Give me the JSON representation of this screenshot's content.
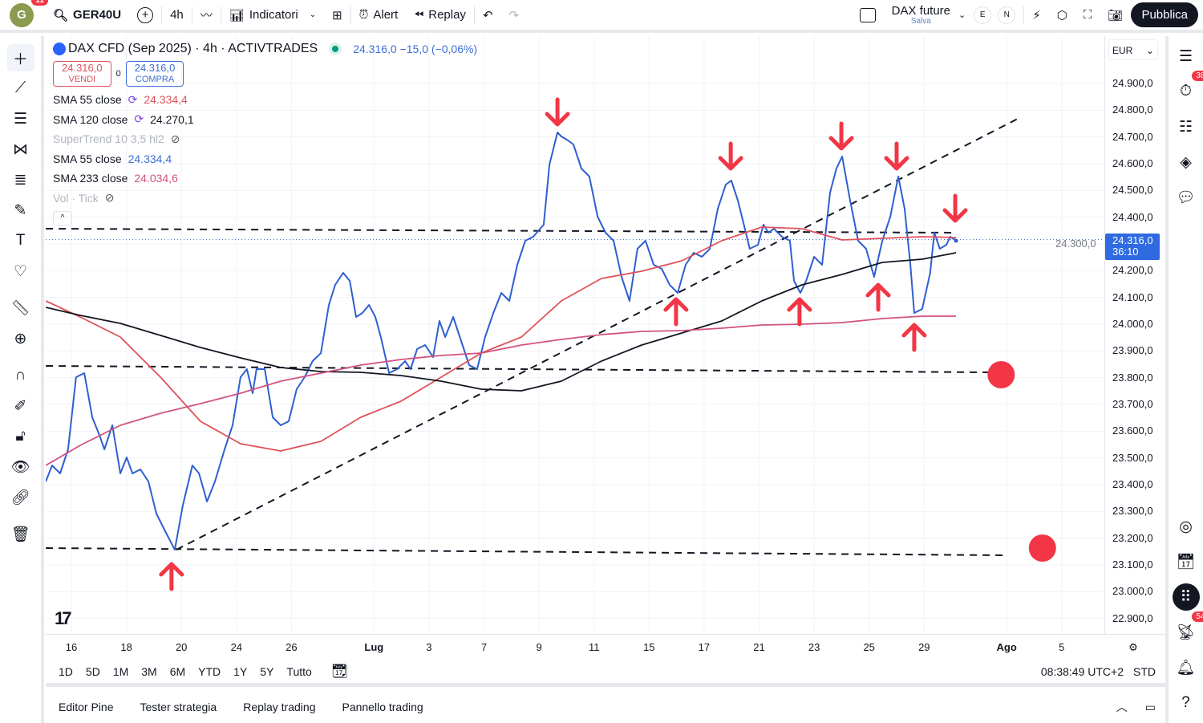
{
  "topbar": {
    "avatar_letter": "G",
    "avatar_badge": "11",
    "symbol": "GER40U",
    "interval": "4h",
    "indicators": "Indicatori",
    "alert": "Alert",
    "replay": "Replay",
    "layout_name": "DAX future",
    "layout_status": "Salva",
    "btn_e": "E",
    "btn_n": "N",
    "publish": "Pubblica"
  },
  "legend": {
    "title": "DAX CFD (Sep 2025) · 4h · ACTIVTRADES",
    "quote": "24.316,0 −15,0 (−0,06%)",
    "sell_price": "24.316,0",
    "sell_label": "VENDI",
    "spread": "0",
    "buy_price": "24.316,0",
    "buy_label": "COMPRA",
    "indicators": [
      {
        "name": "SMA 55 close",
        "value": "24.334,4",
        "color": "#e0525a"
      },
      {
        "name": "SMA 120 close",
        "value": "24.270,1",
        "color": "#131722"
      },
      {
        "name": "SuperTrend 10 3,5 hl2",
        "value": "",
        "color": "#b2b5be"
      },
      {
        "name": "SMA 55 close",
        "value": "24.334,4",
        "color": "#3f6fd6"
      },
      {
        "name": "SMA 233 close",
        "value": "24.034,6",
        "color": "#d2527f"
      },
      {
        "name": "Vol · Tick",
        "value": "",
        "color": "#b2b5be"
      }
    ]
  },
  "currency": "EUR",
  "price_tag": {
    "price": "24.316,0",
    "countdown": "36:10"
  },
  "range": {
    "buttons": [
      "1D",
      "5D",
      "1M",
      "3M",
      "6M",
      "YTD",
      "1Y",
      "5Y",
      "Tutto"
    ],
    "clock": "08:38:49 UTC+2",
    "mode": "STD"
  },
  "bottom_tabs": [
    "Editor Pine",
    "Tester strategia",
    "Replay trading",
    "Pannello trading"
  ],
  "right_badges": {
    "alerts": "38",
    "notifications": "54"
  },
  "colors": {
    "price": "#2f5fd0",
    "sma55": "#e0525a",
    "sma120": "#131722",
    "sma233": "#d2527f",
    "arrow": "#f23645",
    "tag": "#2f6ae0"
  },
  "chart_data": {
    "type": "line",
    "title": "DAX CFD (Sep 2025) · 4h · ACTIVTRADES",
    "x_unit": "trading days since 16 Jun",
    "ylim": [
      22850,
      25050
    ],
    "y_ticks": [
      24900,
      24800,
      24700,
      24600,
      24500,
      24400,
      24300,
      24200,
      24100,
      24000,
      23900,
      23800,
      23700,
      23600,
      23500,
      23400,
      23300,
      23200,
      23100,
      23000,
      22900
    ],
    "y_tick_labels": [
      "24.900,0",
      "24.800,0",
      "24.700,0",
      "24.600,0",
      "24.500,0",
      "24.400,0",
      "24.300,0",
      "24.200,0",
      "24.100,0",
      "24.000,0",
      "23.900,0",
      "23.800,0",
      "23.700,0",
      "23.600,0",
      "23.500,0",
      "23.400,0",
      "23.300,0",
      "23.200,0",
      "23.100,0",
      "23.000,0",
      "22.900,0"
    ],
    "x_ticks": [
      {
        "t": 0,
        "label": "16"
      },
      {
        "t": 2,
        "label": "18"
      },
      {
        "t": 4,
        "label": "20"
      },
      {
        "t": 6,
        "label": "24"
      },
      {
        "t": 8,
        "label": "26"
      },
      {
        "t": 11,
        "label": "Lug"
      },
      {
        "t": 13,
        "label": "3"
      },
      {
        "t": 15,
        "label": "7"
      },
      {
        "t": 17,
        "label": "9"
      },
      {
        "t": 19,
        "label": "11"
      },
      {
        "t": 21,
        "label": "15"
      },
      {
        "t": 23,
        "label": "17"
      },
      {
        "t": 25,
        "label": "21"
      },
      {
        "t": 27,
        "label": "23"
      },
      {
        "t": 29,
        "label": "25"
      },
      {
        "t": 31,
        "label": "29"
      },
      {
        "t": 34,
        "label": "Ago"
      },
      {
        "t": 36,
        "label": "5"
      }
    ],
    "series": [
      {
        "name": "Price",
        "color": "#2f5fd0",
        "points": [
          [
            -0.93,
            23412
          ],
          [
            -0.7,
            23472
          ],
          [
            -0.41,
            23442
          ],
          [
            -0.12,
            23532
          ],
          [
            0.17,
            23802
          ],
          [
            0.47,
            23817
          ],
          [
            0.76,
            23652
          ],
          [
            1.05,
            23577
          ],
          [
            1.2,
            23532
          ],
          [
            1.49,
            23622
          ],
          [
            1.78,
            23442
          ],
          [
            2.01,
            23502
          ],
          [
            2.22,
            23442
          ],
          [
            2.51,
            23457
          ],
          [
            2.8,
            23412
          ],
          [
            3.09,
            23292
          ],
          [
            3.38,
            23232
          ],
          [
            3.76,
            23157
          ],
          [
            4.05,
            23322
          ],
          [
            4.4,
            23472
          ],
          [
            4.64,
            23442
          ],
          [
            4.93,
            23337
          ],
          [
            5.22,
            23412
          ],
          [
            5.57,
            23532
          ],
          [
            5.86,
            23622
          ],
          [
            6.15,
            23802
          ],
          [
            6.38,
            23832
          ],
          [
            6.59,
            23742
          ],
          [
            6.73,
            23832
          ],
          [
            7.03,
            23832
          ],
          [
            7.32,
            23652
          ],
          [
            7.61,
            23622
          ],
          [
            7.9,
            23637
          ],
          [
            8.19,
            23757
          ],
          [
            8.48,
            23802
          ],
          [
            8.77,
            23862
          ],
          [
            9.07,
            23892
          ],
          [
            9.36,
            24072
          ],
          [
            9.59,
            24147
          ],
          [
            9.88,
            24192
          ],
          [
            10.12,
            24162
          ],
          [
            10.35,
            24027
          ],
          [
            10.58,
            24042
          ],
          [
            10.82,
            24072
          ],
          [
            11.05,
            24027
          ],
          [
            11.25,
            23952
          ],
          [
            11.55,
            23817
          ],
          [
            11.84,
            23832
          ],
          [
            12.13,
            23862
          ],
          [
            12.33,
            23832
          ],
          [
            12.57,
            23907
          ],
          [
            12.86,
            23922
          ],
          [
            13.15,
            23877
          ],
          [
            13.38,
            24012
          ],
          [
            13.59,
            23952
          ],
          [
            13.88,
            24027
          ],
          [
            14.17,
            23937
          ],
          [
            14.46,
            23847
          ],
          [
            14.75,
            23832
          ],
          [
            15.04,
            23952
          ],
          [
            15.34,
            24042
          ],
          [
            15.63,
            24117
          ],
          [
            15.92,
            24087
          ],
          [
            16.21,
            24222
          ],
          [
            16.5,
            24312
          ],
          [
            16.79,
            24327
          ],
          [
            17.17,
            24372
          ],
          [
            17.38,
            24597
          ],
          [
            17.67,
            24717
          ],
          [
            17.81,
            24702
          ],
          [
            18.05,
            24687
          ],
          [
            18.25,
            24672
          ],
          [
            18.54,
            24582
          ],
          [
            18.83,
            24552
          ],
          [
            19.13,
            24402
          ],
          [
            19.42,
            24342
          ],
          [
            19.71,
            24312
          ],
          [
            20.0,
            24177
          ],
          [
            20.29,
            24087
          ],
          [
            20.58,
            24282
          ],
          [
            20.87,
            24312
          ],
          [
            21.17,
            24222
          ],
          [
            21.46,
            24207
          ],
          [
            21.75,
            24147
          ],
          [
            22.04,
            24117
          ],
          [
            22.33,
            24222
          ],
          [
            22.62,
            24267
          ],
          [
            22.92,
            24252
          ],
          [
            23.21,
            24282
          ],
          [
            23.5,
            24432
          ],
          [
            23.79,
            24522
          ],
          [
            23.99,
            24537
          ],
          [
            24.23,
            24462
          ],
          [
            24.52,
            24342
          ],
          [
            24.66,
            24282
          ],
          [
            24.96,
            24297
          ],
          [
            25.16,
            24372
          ],
          [
            25.34,
            24342
          ],
          [
            25.54,
            24357
          ],
          [
            25.83,
            24327
          ],
          [
            26.12,
            24312
          ],
          [
            26.27,
            24162
          ],
          [
            26.5,
            24117
          ],
          [
            26.71,
            24162
          ],
          [
            27.0,
            24252
          ],
          [
            27.29,
            24222
          ],
          [
            27.58,
            24492
          ],
          [
            27.81,
            24582
          ],
          [
            28.02,
            24627
          ],
          [
            28.31,
            24462
          ],
          [
            28.6,
            24312
          ],
          [
            28.89,
            24282
          ],
          [
            29.18,
            24177
          ],
          [
            29.48,
            24312
          ],
          [
            29.77,
            24402
          ],
          [
            30.06,
            24552
          ],
          [
            30.29,
            24432
          ],
          [
            30.5,
            24222
          ],
          [
            30.64,
            24042
          ],
          [
            30.93,
            24057
          ],
          [
            31.22,
            24192
          ],
          [
            31.37,
            24342
          ],
          [
            31.57,
            24282
          ],
          [
            31.81,
            24297
          ],
          [
            31.95,
            24327
          ],
          [
            32.16,
            24312
          ]
        ]
      },
      {
        "name": "SMA 55",
        "color": "#e0525a",
        "t": [
          -0.93,
          0.32,
          1.78,
          3.24,
          4.69,
          6.15,
          7.61,
          9.07,
          10.52,
          11.98,
          13.44,
          14.9,
          16.36,
          17.81,
          19.27,
          20.73,
          22.19,
          23.64,
          25.1,
          26.56,
          28.02,
          29.48,
          30.93,
          32.16
        ],
        "values": [
          24087,
          24027,
          23952,
          23802,
          23637,
          23553,
          23526,
          23562,
          23652,
          23712,
          23802,
          23892,
          23952,
          24087,
          24171,
          24198,
          24237,
          24312,
          24363,
          24357,
          24315,
          24321,
          24327,
          24324
        ]
      },
      {
        "name": "SMA 120",
        "color": "#131722",
        "t": [
          -0.93,
          0.32,
          1.78,
          3.24,
          4.69,
          6.15,
          7.61,
          9.07,
          10.52,
          11.98,
          13.44,
          14.9,
          16.36,
          17.81,
          19.27,
          20.73,
          22.19,
          23.64,
          25.1,
          26.56,
          28.02,
          29.48,
          30.93,
          32.16
        ],
        "values": [
          24063,
          24033,
          24003,
          23958,
          23913,
          23874,
          23838,
          23823,
          23820,
          23808,
          23787,
          23757,
          23751,
          23787,
          23862,
          23922,
          23967,
          24012,
          24087,
          24147,
          24186,
          24231,
          24243,
          24267
        ]
      },
      {
        "name": "SMA 233",
        "color": "#d2527f",
        "t": [
          -0.93,
          0.32,
          1.78,
          3.24,
          4.69,
          6.15,
          7.61,
          9.07,
          10.52,
          11.98,
          13.44,
          14.9,
          16.36,
          17.81,
          19.27,
          20.73,
          22.19,
          23.64,
          25.1,
          26.56,
          28.02,
          29.48,
          30.93,
          32.16
        ],
        "values": [
          23472,
          23547,
          23622,
          23667,
          23703,
          23742,
          23787,
          23817,
          23847,
          23868,
          23883,
          23892,
          23922,
          23943,
          23961,
          23973,
          23976,
          23985,
          23997,
          24000,
          24006,
          24021,
          24030,
          24030
        ]
      }
    ],
    "annotations": {
      "dashed_lines": [
        [
          [
            -0.93,
            24357
          ],
          [
            32.16,
            24342
          ]
        ],
        [
          [
            -0.93,
            23844
          ],
          [
            33.4,
            23820
          ]
        ],
        [
          [
            -0.93,
            23163
          ],
          [
            34.0,
            23136
          ]
        ],
        [
          [
            3.82,
            23157
          ],
          [
            34.4,
            24768
          ]
        ]
      ],
      "circles": [
        [
          33.8,
          23811
        ],
        [
          35.3,
          23163
        ]
      ],
      "down_arrows": [
        [
          17.67,
          24792
        ],
        [
          23.97,
          24627
        ],
        [
          27.99,
          24702
        ],
        [
          30.0,
          24627
        ],
        [
          32.13,
          24432
        ]
      ],
      "up_arrows": [
        [
          3.64,
          23058
        ],
        [
          21.98,
          24048
        ],
        [
          26.47,
          24048
        ],
        [
          29.33,
          24102
        ],
        [
          30.64,
          23952
        ]
      ]
    },
    "last_price": 24316
  }
}
